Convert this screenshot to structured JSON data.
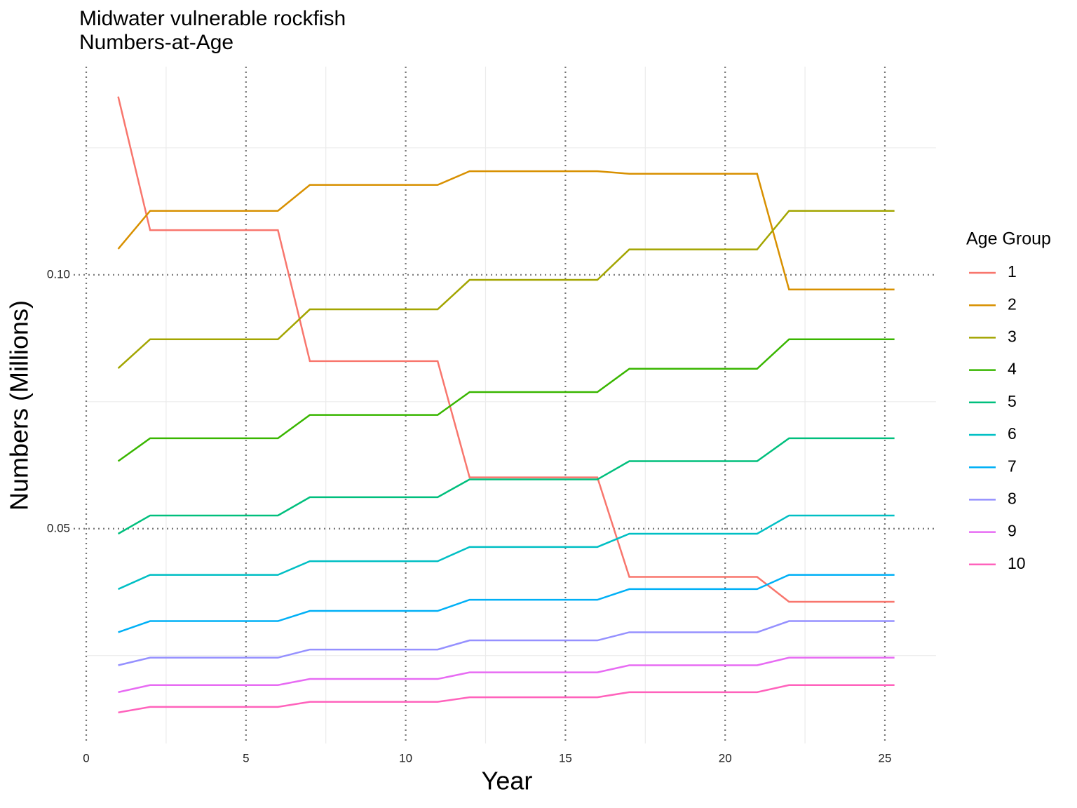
{
  "chart_data": {
    "type": "line",
    "title": "Midwater vulnerable rockfish",
    "subtitle": "Numbers-at-Age",
    "x_label": "Year",
    "y_label": "Numbers (Millions)",
    "legend_title": "Age Group",
    "legend_position": "right",
    "x": [
      1,
      2,
      6,
      7,
      11,
      12,
      16,
      17,
      21,
      22,
      25.3
    ],
    "series": [
      {
        "name": "1",
        "color": "#F8766D",
        "values": [
          0.1351,
          0.1088,
          0.1088,
          0.083,
          0.083,
          0.0601,
          0.0601,
          0.0405,
          0.0405,
          0.0356,
          0.0356
        ]
      },
      {
        "name": "2",
        "color": "#D89000",
        "values": [
          0.1051,
          0.1126,
          0.1126,
          0.1177,
          0.1177,
          0.1204,
          0.1204,
          0.1199,
          0.1199,
          0.0971,
          0.0971
        ]
      },
      {
        "name": "3",
        "color": "#A3A500",
        "values": [
          0.0816,
          0.0873,
          0.0873,
          0.0932,
          0.0932,
          0.099,
          0.099,
          0.105,
          0.105,
          0.1126,
          0.1126
        ]
      },
      {
        "name": "4",
        "color": "#39B600",
        "values": [
          0.0633,
          0.0678,
          0.0678,
          0.0724,
          0.0724,
          0.0769,
          0.0769,
          0.0815,
          0.0815,
          0.0873,
          0.0873
        ]
      },
      {
        "name": "5",
        "color": "#00BF7D",
        "values": [
          0.049,
          0.0526,
          0.0526,
          0.0562,
          0.0562,
          0.0597,
          0.0597,
          0.0633,
          0.0633,
          0.0678,
          0.0678
        ]
      },
      {
        "name": "6",
        "color": "#00BFC4",
        "values": [
          0.0381,
          0.0409,
          0.0409,
          0.0436,
          0.0436,
          0.0464,
          0.0464,
          0.049,
          0.049,
          0.0526,
          0.0526
        ]
      },
      {
        "name": "7",
        "color": "#00B0F6",
        "values": [
          0.0296,
          0.0318,
          0.0318,
          0.0338,
          0.0338,
          0.036,
          0.036,
          0.0381,
          0.0381,
          0.0409,
          0.0409
        ]
      },
      {
        "name": "8",
        "color": "#9590FF",
        "values": [
          0.0231,
          0.0246,
          0.0246,
          0.0262,
          0.0262,
          0.028,
          0.028,
          0.0296,
          0.0296,
          0.0318,
          0.0318
        ]
      },
      {
        "name": "9",
        "color": "#E76BF3",
        "values": [
          0.0178,
          0.0192,
          0.0192,
          0.0204,
          0.0204,
          0.0217,
          0.0217,
          0.0231,
          0.0231,
          0.0246,
          0.0246
        ]
      },
      {
        "name": "10",
        "color": "#FF62BC",
        "values": [
          0.0138,
          0.0149,
          0.0149,
          0.0159,
          0.0159,
          0.0168,
          0.0168,
          0.0178,
          0.0178,
          0.0192,
          0.0192
        ]
      }
    ],
    "xlim": [
      -0.03,
      26.6
    ],
    "ylim": [
      0.0077,
      0.141
    ],
    "xticks": [
      0,
      5,
      10,
      15,
      20,
      25
    ],
    "yticks": [
      0.05,
      {
        "value": 0.1,
        "label": "0.10"
      }
    ],
    "xminor": [
      2.5,
      7.5,
      12.5,
      17.5,
      22.5
    ],
    "yminor": [
      0.025,
      0.075,
      0.125
    ],
    "grid": true
  }
}
